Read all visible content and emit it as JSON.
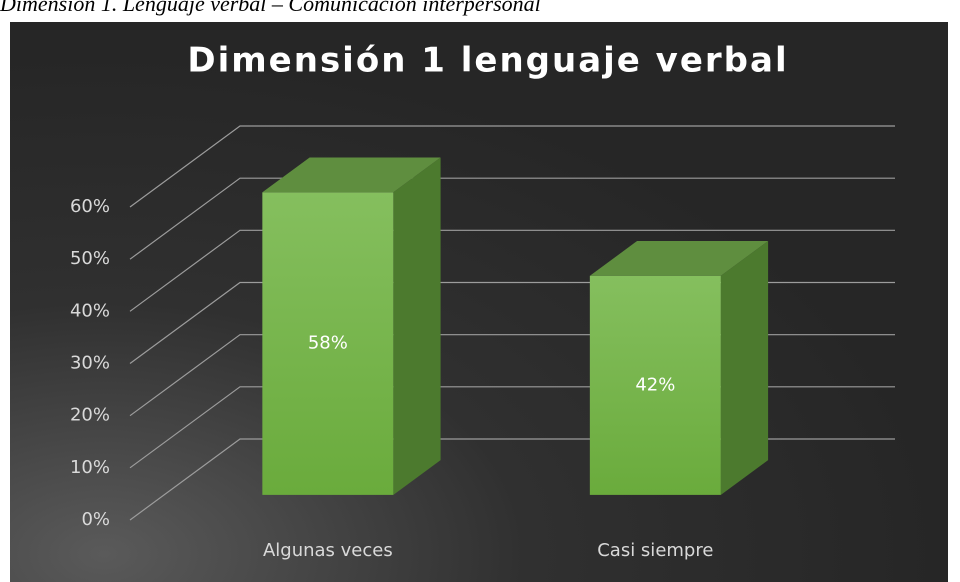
{
  "caption": "Dimensión 1. Lenguaje verbal – Comunicación interpersonal",
  "chart_data": {
    "type": "bar3d",
    "title": "Dimensión 1 lenguaje verbal",
    "categories": [
      "Algunas veces",
      "Casi siempre"
    ],
    "values": [
      58,
      42
    ],
    "value_labels": [
      "58%",
      "42%"
    ],
    "color": "#77b84a",
    "ylim": [
      0,
      60
    ],
    "yticks": [
      {
        "value": 0,
        "label": "0%"
      },
      {
        "value": 10,
        "label": "10%"
      },
      {
        "value": 20,
        "label": "20%"
      },
      {
        "value": 30,
        "label": "30%"
      },
      {
        "value": 40,
        "label": "40%"
      },
      {
        "value": 50,
        "label": "50%"
      },
      {
        "value": 60,
        "label": "60%"
      }
    ],
    "grid": true
  }
}
